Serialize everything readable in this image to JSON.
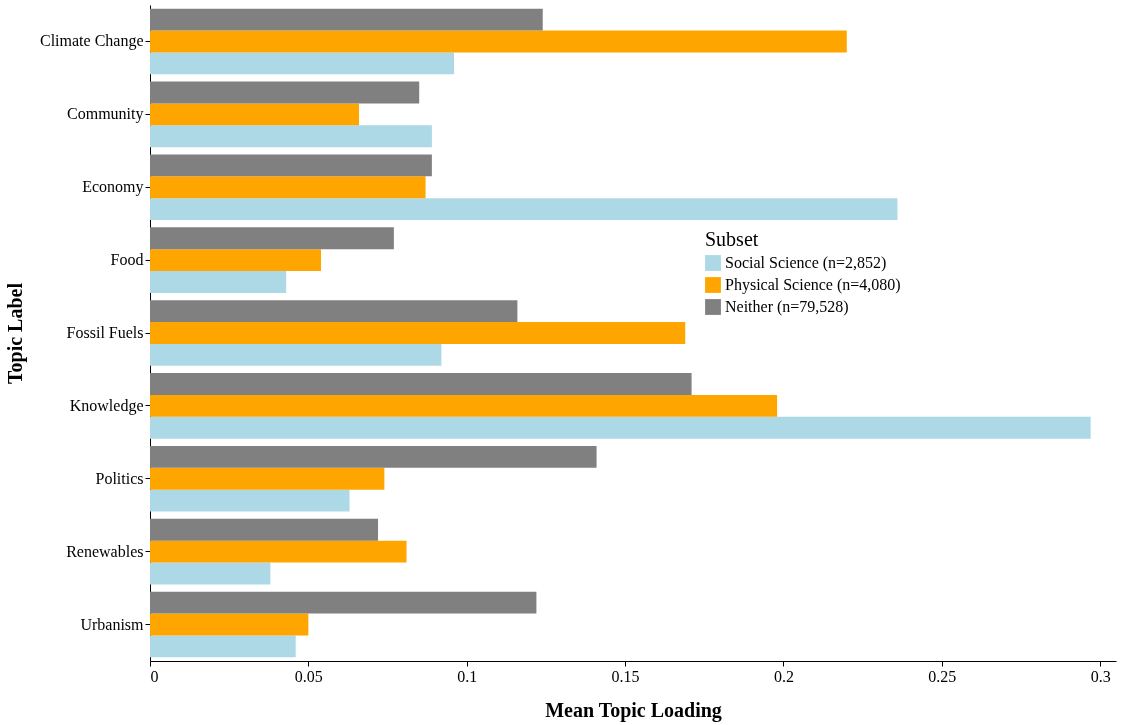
{
  "chart_data": {
    "type": "bar",
    "orientation": "horizontal",
    "xlabel": "Mean Topic Loading",
    "ylabel": "Topic Label",
    "legend_title": "Subset",
    "legend": "right",
    "grid": false,
    "categories": [
      "Climate Change",
      "Community",
      "Economy",
      "Food",
      "Fossil Fuels",
      "Knowledge",
      "Politics",
      "Renewables",
      "Urbanism"
    ],
    "xlim": [
      0,
      0.305
    ],
    "xticks": [
      0,
      0.05,
      0.1,
      0.15,
      0.2,
      0.25,
      0.3
    ],
    "series": [
      {
        "name": "Social Science (n=2,852)",
        "color": "#add8e6",
        "values": [
          0.096,
          0.089,
          0.236,
          0.043,
          0.092,
          0.297,
          0.063,
          0.038,
          0.046
        ]
      },
      {
        "name": "Physical Science (n=4,080)",
        "color": "#ffa500",
        "values": [
          0.22,
          0.066,
          0.087,
          0.054,
          0.169,
          0.198,
          0.074,
          0.081,
          0.05
        ]
      },
      {
        "name": "Neither (n=79,528)",
        "color": "#808080",
        "values": [
          0.124,
          0.085,
          0.089,
          0.077,
          0.116,
          0.171,
          0.141,
          0.072,
          0.122
        ]
      }
    ]
  }
}
